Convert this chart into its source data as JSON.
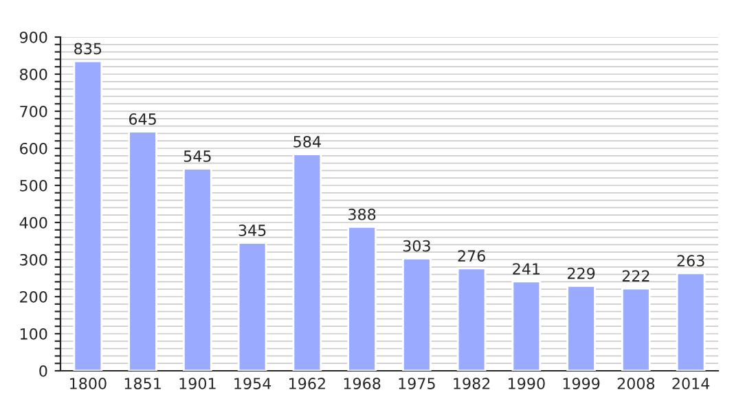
{
  "chart_data": {
    "type": "bar",
    "categories": [
      "1800",
      "1851",
      "1901",
      "1954",
      "1962",
      "1968",
      "1975",
      "1982",
      "1990",
      "1999",
      "2008",
      "2014"
    ],
    "values": [
      835,
      645,
      545,
      345,
      584,
      388,
      303,
      276,
      241,
      229,
      222,
      263
    ],
    "color": "#99aaff",
    "data_labels": true,
    "grid": "y",
    "ylim": [
      0,
      900
    ],
    "yticks": [
      0,
      {
        "value": 20,
        "label": null
      },
      {
        "value": 40,
        "label": null
      },
      {
        "value": 60,
        "label": null
      },
      {
        "value": 80,
        "label": null
      },
      100,
      {
        "value": 120,
        "label": null
      },
      {
        "value": 140,
        "label": null
      },
      {
        "value": 160,
        "label": null
      },
      {
        "value": 180,
        "label": null
      },
      200,
      {
        "value": 220,
        "label": null
      },
      {
        "value": 240,
        "label": null
      },
      {
        "value": 260,
        "label": null
      },
      {
        "value": 280,
        "label": null
      },
      300,
      {
        "value": 320,
        "label": null
      },
      {
        "value": 340,
        "label": null
      },
      {
        "value": 360,
        "label": null
      },
      {
        "value": 380,
        "label": null
      },
      400,
      {
        "value": 420,
        "label": null
      },
      {
        "value": 440,
        "label": null
      },
      {
        "value": 460,
        "label": null
      },
      {
        "value": 480,
        "label": null
      },
      500,
      {
        "value": 520,
        "label": null
      },
      {
        "value": 540,
        "label": null
      },
      {
        "value": 560,
        "label": null
      },
      {
        "value": 580,
        "label": null
      },
      600,
      {
        "value": 620,
        "label": null
      },
      {
        "value": 640,
        "label": null
      },
      {
        "value": 660,
        "label": null
      },
      {
        "value": 680,
        "label": null
      },
      700,
      {
        "value": 720,
        "label": null
      },
      {
        "value": 740,
        "label": null
      },
      {
        "value": 760,
        "label": null
      },
      {
        "value": 780,
        "label": null
      },
      800,
      {
        "value": 820,
        "label": null
      },
      {
        "value": 840,
        "label": null
      },
      {
        "value": 860,
        "label": null
      },
      {
        "value": 880,
        "label": null
      },
      900
    ]
  }
}
